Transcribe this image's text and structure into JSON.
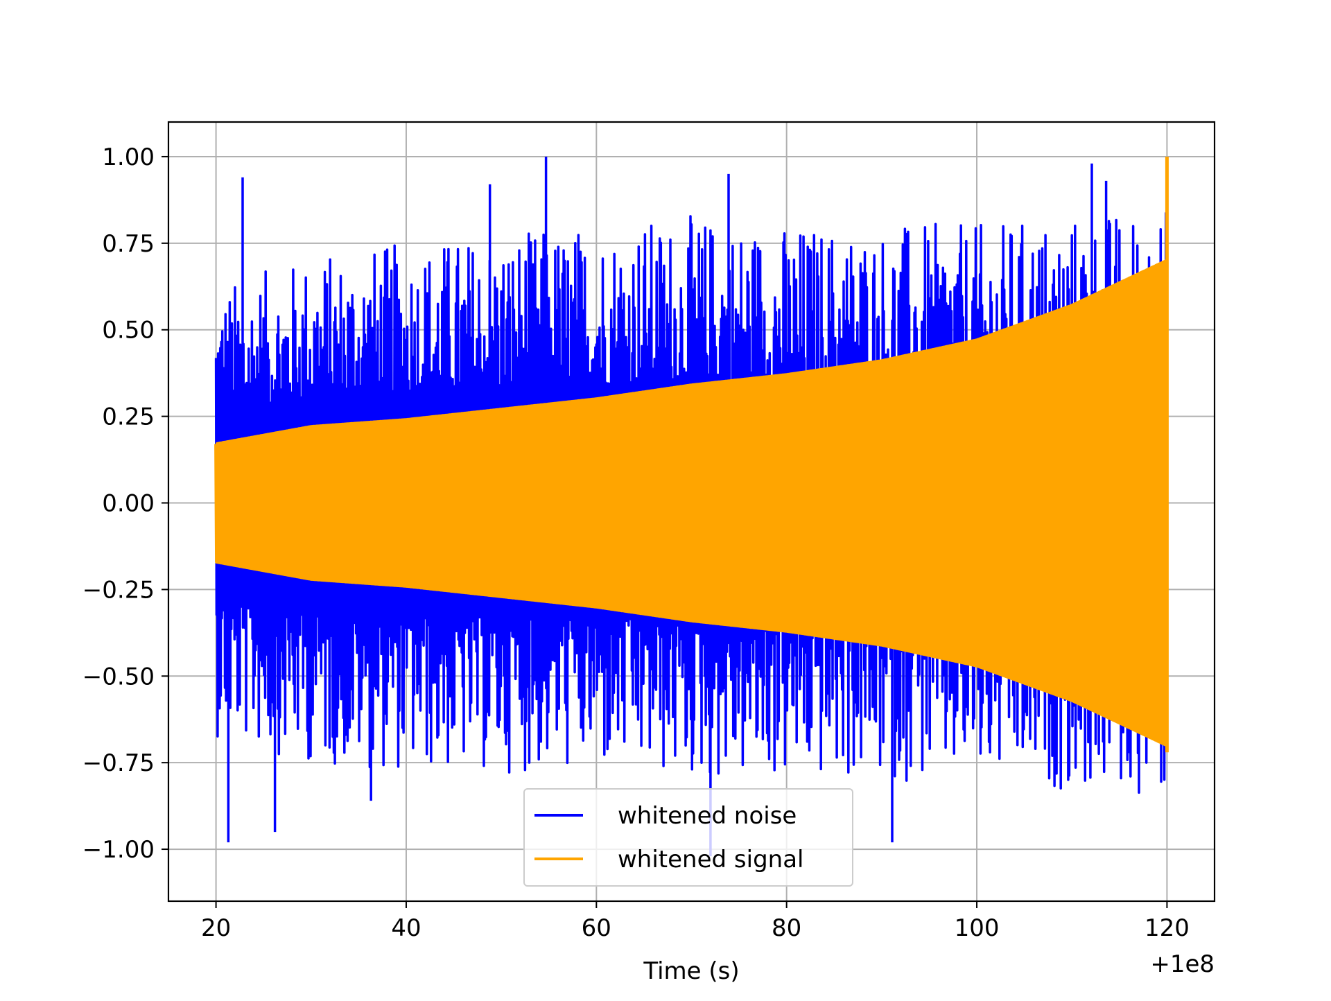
{
  "chart_data": {
    "type": "line",
    "title": "",
    "xlabel": "Time (s)",
    "ylabel": "",
    "x_offset_label": "+1e8",
    "xlim": [
      15,
      125
    ],
    "ylim": [
      -1.15,
      1.1
    ],
    "grid": true,
    "legend_position": "lower-center",
    "x_ticks": [
      20,
      40,
      60,
      80,
      100,
      120
    ],
    "x_tick_labels": [
      "20",
      "40",
      "60",
      "80",
      "100",
      "120"
    ],
    "y_ticks": [
      1.0,
      0.75,
      0.5,
      0.25,
      0.0,
      -0.25,
      -0.5,
      -0.75,
      -1.0
    ],
    "y_tick_labels": [
      "1.00",
      "0.75",
      "0.50",
      "0.25",
      "0.00",
      "−0.25",
      "−0.50",
      "−0.75",
      "−1.00"
    ],
    "series": [
      {
        "name": "whitened noise",
        "color": "#0000ff",
        "x_range": [
          20,
          120
        ],
        "envelope_x": [
          20,
          30,
          40,
          50,
          60,
          70,
          80,
          90,
          100,
          110,
          120
        ],
        "envelope_upper": [
          0.48,
          0.55,
          0.58,
          0.6,
          0.62,
          0.64,
          0.62,
          0.62,
          0.62,
          0.64,
          0.66
        ],
        "envelope_lower": [
          -0.52,
          -0.58,
          -0.6,
          -0.6,
          -0.6,
          -0.62,
          -0.62,
          -0.62,
          -0.62,
          -0.64,
          -0.66
        ],
        "peaks": [
          {
            "x": 21.3,
            "y": -0.98
          },
          {
            "x": 22.8,
            "y": 0.94
          },
          {
            "x": 26.2,
            "y": -0.95
          },
          {
            "x": 54.7,
            "y": 1.0
          },
          {
            "x": 73.9,
            "y": 0.95
          },
          {
            "x": 72.0,
            "y": -1.02
          },
          {
            "x": 91.1,
            "y": -0.98
          },
          {
            "x": 112.1,
            "y": 0.98
          },
          {
            "x": 48.8,
            "y": 0.92
          },
          {
            "x": 113.6,
            "y": 0.93
          },
          {
            "x": 36.3,
            "y": -0.86
          }
        ]
      },
      {
        "name": "whitened signal",
        "color": "#ffa500",
        "x_range": [
          20,
          120
        ],
        "envelope_x": [
          20,
          30,
          40,
          50,
          60,
          70,
          80,
          90,
          100,
          110,
          120
        ],
        "envelope_upper": [
          0.17,
          0.22,
          0.24,
          0.27,
          0.3,
          0.34,
          0.37,
          0.41,
          0.47,
          0.57,
          0.7
        ],
        "envelope_lower": [
          -0.17,
          -0.22,
          -0.24,
          -0.27,
          -0.3,
          -0.34,
          -0.37,
          -0.41,
          -0.47,
          -0.57,
          -0.7
        ],
        "peaks": [
          {
            "x": 120,
            "y": 1.0
          },
          {
            "x": 120,
            "y": -0.72
          }
        ]
      }
    ]
  }
}
